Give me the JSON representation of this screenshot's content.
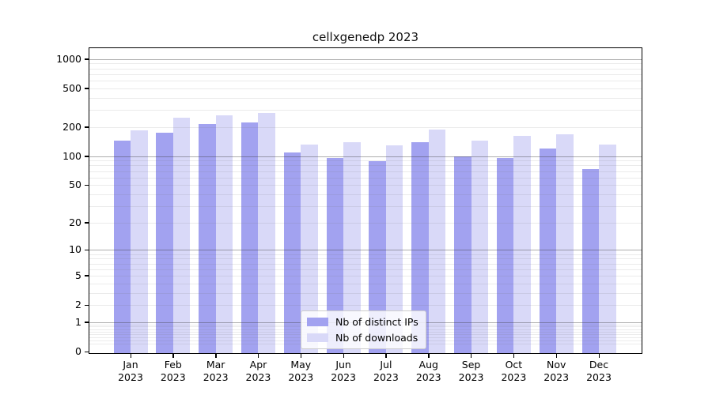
{
  "chart_data": {
    "type": "bar",
    "title": "cellxgenedp 2023",
    "categories": [
      "Jan",
      "Feb",
      "Mar",
      "Apr",
      "May",
      "Jun",
      "Jul",
      "Aug",
      "Sep",
      "Oct",
      "Nov",
      "Dec"
    ],
    "year_label": "2023",
    "series": [
      {
        "name": "Nb of distinct IPs",
        "color": "#a2a2f0",
        "values": [
          145,
          174,
          215,
          225,
          109,
          95,
          88,
          140,
          100,
          96,
          120,
          73
        ]
      },
      {
        "name": "Nb of downloads",
        "color": "#d9d9f8",
        "values": [
          185,
          250,
          265,
          280,
          131,
          139,
          130,
          190,
          144,
          161,
          168,
          132
        ]
      }
    ],
    "y_axis": {
      "scale": "log1p",
      "tick_labels": [
        "1000",
        "500",
        "200",
        "100",
        "50",
        "20",
        "10",
        "5",
        "2",
        "1",
        "0"
      ],
      "ylim": [
        0,
        1286
      ],
      "grid": true
    },
    "x_axis": {
      "tick_label_format": "month over year"
    },
    "legend": {
      "position": "lower-center",
      "entries": [
        "Nb of distinct IPs",
        "Nb of downloads"
      ]
    }
  }
}
